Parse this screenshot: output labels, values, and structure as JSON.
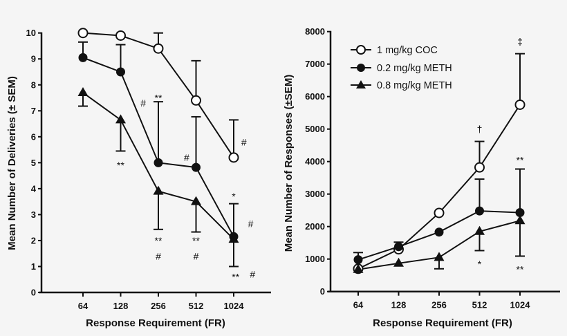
{
  "chart_data": [
    {
      "type": "line",
      "xlabel": "Response Requirement (FR)",
      "ylabel": "Mean Number of Deliveries (± SEM)",
      "categories": [
        "64",
        "128",
        "256",
        "512",
        "1024"
      ],
      "x_scale": "log2",
      "ylim": [
        0,
        10
      ],
      "yticks": [
        "0",
        "1",
        "2",
        "3",
        "4",
        "5",
        "6",
        "7",
        "8",
        "9",
        "10"
      ],
      "grid": false,
      "series": [
        {
          "name": "1 mg/kg COC",
          "marker": "open-circle",
          "values": [
            10,
            9.9,
            9.4,
            7.4,
            5.2
          ],
          "error_bar_end": [
            null,
            null,
            10.0,
            8.93,
            6.65
          ]
        },
        {
          "name": "0.2 mg/kg METH",
          "marker": "filled-circle",
          "values": [
            9.05,
            8.5,
            5.0,
            4.82,
            2.15
          ],
          "error_bar_end": [
            9.65,
            9.55,
            7.35,
            6.77,
            3.42
          ]
        },
        {
          "name": "0.8 mg/kg METH",
          "marker": "filled-triangle",
          "values": [
            7.7,
            6.65,
            3.9,
            3.5,
            2.05
          ],
          "error_bar_end": [
            7.18,
            5.45,
            2.43,
            2.33,
            1.0
          ]
        }
      ],
      "annotations": [
        {
          "text": "**",
          "x": "128",
          "dx": 0,
          "y": 4.9
        },
        {
          "text": "#",
          "x": "256",
          "dx": -0.4,
          "y": 7.3
        },
        {
          "text": "**",
          "x": "256",
          "dx": 0,
          "y": 7.5
        },
        {
          "text": "#",
          "x": "512",
          "dx": -0.25,
          "y": 5.2
        },
        {
          "text": "**",
          "x": "256",
          "dx": 0,
          "y": 2.0
        },
        {
          "text": "#",
          "x": "256",
          "dx": 0,
          "y": 1.4
        },
        {
          "text": "**",
          "x": "512",
          "dx": 0,
          "y": 2.0
        },
        {
          "text": "#",
          "x": "512",
          "dx": 0,
          "y": 1.4
        },
        {
          "text": "*",
          "x": "1024",
          "dx": 0,
          "y": 3.7
        },
        {
          "text": "#",
          "x": "1024",
          "dx": 0.27,
          "y": 5.8
        },
        {
          "text": "#",
          "x": "1024",
          "dx": 0.45,
          "y": 2.65
        },
        {
          "text": "**",
          "x": "1024",
          "dx": 0.05,
          "y": 0.6
        },
        {
          "text": "#",
          "x": "1024",
          "dx": 0.5,
          "y": 0.7
        }
      ]
    },
    {
      "type": "line",
      "xlabel": "Response Requirement (FR)",
      "ylabel": "Mean Number of Responses (±SEM)",
      "categories": [
        "64",
        "128",
        "256",
        "512",
        "1024"
      ],
      "x_scale": "log2",
      "ylim": [
        0,
        8000
      ],
      "yticks": [
        "0",
        "1000",
        "2000",
        "3000",
        "4000",
        "5000",
        "6000",
        "7000",
        "8000"
      ],
      "grid": false,
      "legend": "top-left",
      "series": [
        {
          "name": "1 mg/kg COC",
          "marker": "open-circle",
          "values": [
            700,
            1300,
            2420,
            3820,
            5750
          ],
          "error_bar_end": [
            null,
            null,
            null,
            4620,
            7320
          ]
        },
        {
          "name": "0.2 mg/kg METH",
          "marker": "filled-circle",
          "values": [
            980,
            1380,
            1830,
            2480,
            2430
          ],
          "error_bar_end": [
            1200,
            1520,
            null,
            3460,
            3770
          ]
        },
        {
          "name": "0.8 mg/kg METH",
          "marker": "filled-triangle",
          "values": [
            680,
            870,
            1050,
            1850,
            2180
          ],
          "error_bar_end": [
            null,
            null,
            700,
            1260,
            1090
          ]
        }
      ],
      "annotations": [
        {
          "text": "‡",
          "x": "1024",
          "dx": 0,
          "y": 7700
        },
        {
          "text": "†",
          "x": "512",
          "dx": 0,
          "y": 5000
        },
        {
          "text": "**",
          "x": "1024",
          "dx": 0,
          "y": 4050
        },
        {
          "text": "*",
          "x": "512",
          "dx": 0,
          "y": 850
        },
        {
          "text": "**",
          "x": "1024",
          "dx": 0,
          "y": 680
        }
      ]
    }
  ]
}
